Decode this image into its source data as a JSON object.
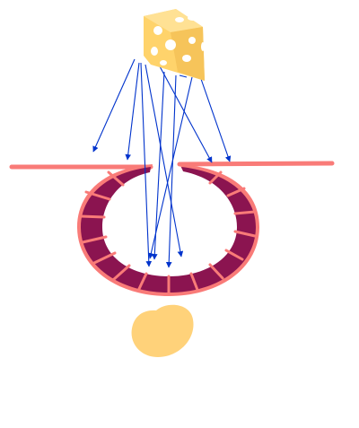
{
  "diagram": {
    "elements": {
      "cheese": "cheese-wedge",
      "membrane": "cell-membrane",
      "vesicle": "endocytic-vesicle",
      "particle": "food-particle"
    },
    "arrow_count": 10
  },
  "colors": {
    "cheese_fill": "#FFD36B",
    "cheese_holes": "#FFFFFF",
    "membrane_line": "#F97B78",
    "vesicle_inner": "#8B1450",
    "arrows": "#0033CC",
    "particle_fill": "#FFD27A",
    "background": "#FFFFFF"
  }
}
